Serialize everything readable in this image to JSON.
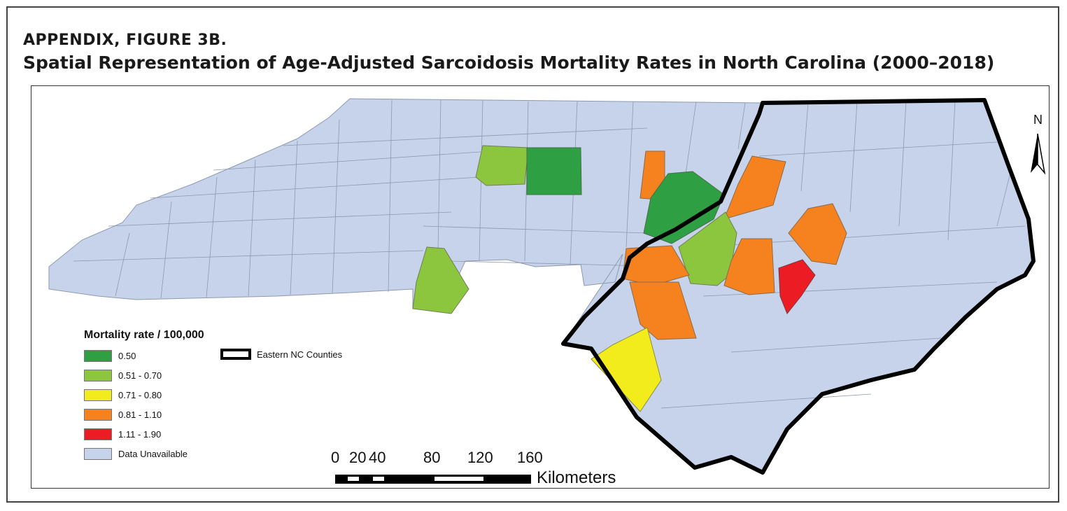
{
  "figure": {
    "label": "APPENDIX, FIGURE 3B.",
    "title": "Spatial Representation of Age-Adjusted Sarcoidosis Mortality Rates in North Carolina (2000–2018)"
  },
  "map": {
    "state": "North Carolina",
    "north_label": "N",
    "region_outline_label": "Eastern NC Counties",
    "legend": {
      "title": "Mortality rate / 100,000",
      "classes": [
        {
          "label": "0.50",
          "color": "#2ea043"
        },
        {
          "label": "0.51 - 0.70",
          "color": "#8cc63f"
        },
        {
          "label": "0.71 - 0.80",
          "color": "#f2ec1c"
        },
        {
          "label": "0.81 - 1.10",
          "color": "#f5821f"
        },
        {
          "label": "1.11 - 1.90",
          "color": "#ec1c24"
        },
        {
          "label": "Data Unavailable",
          "color": "#c6d3ea"
        }
      ]
    },
    "scale_bar": {
      "ticks": [
        "0",
        "20",
        "40",
        "80",
        "120",
        "160"
      ],
      "unit": "Kilometers"
    }
  }
}
